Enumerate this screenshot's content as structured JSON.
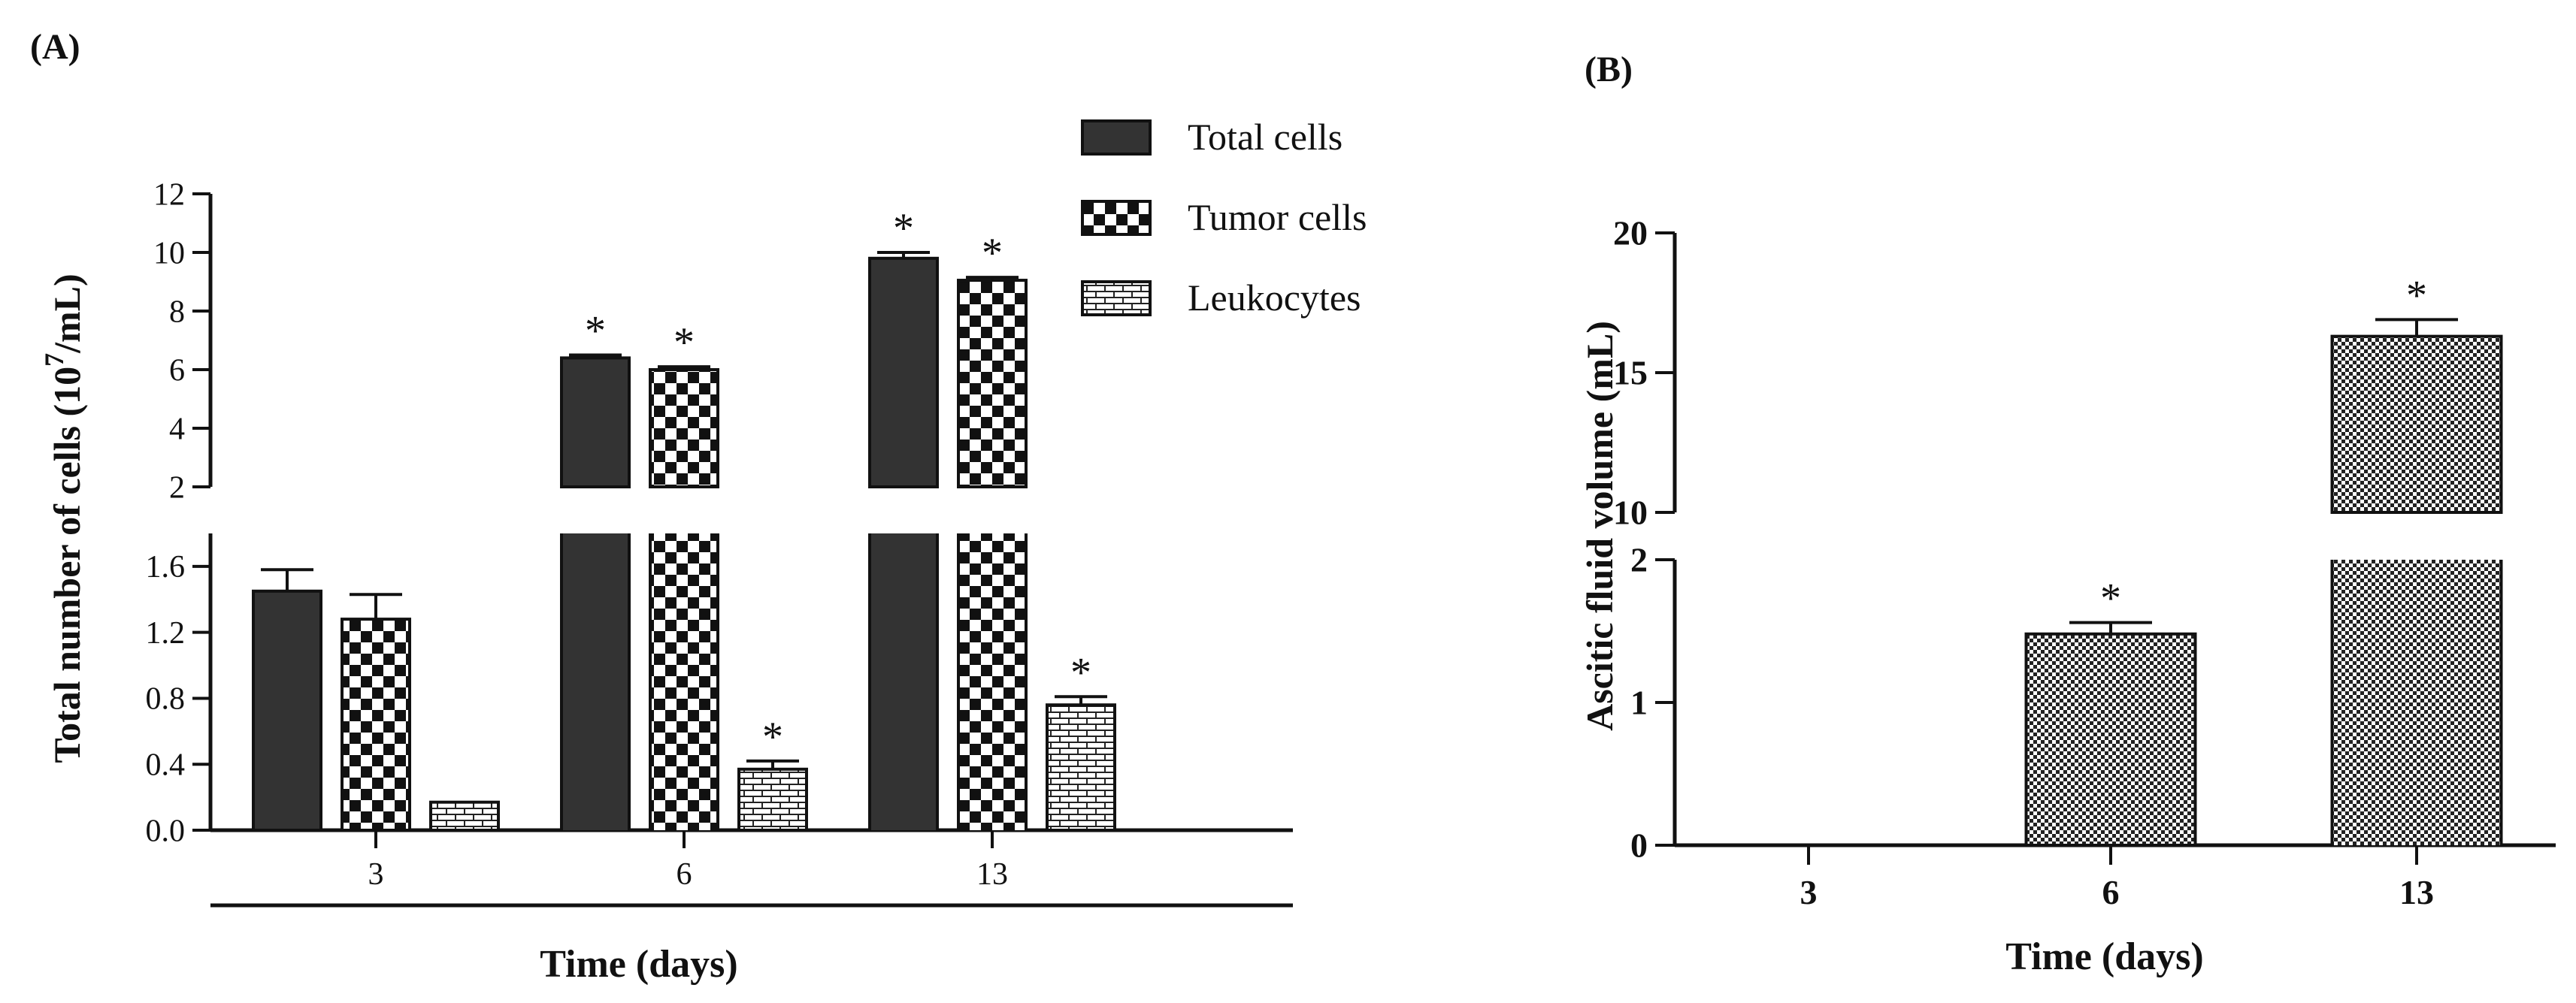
{
  "chart_data": [
    {
      "panel_label": "(A)",
      "type": "bar",
      "categories": [
        "3",
        "6",
        "13"
      ],
      "xlabel": "Time (days)",
      "ylabel": "Total number of cells (10",
      "ylabel_sup": "7",
      "ylabel_end": "/mL)",
      "axis_break": true,
      "ylim_lower": [
        0.0,
        1.8
      ],
      "ylim_upper": [
        2,
        12
      ],
      "yticks_lower": [
        "0.0",
        "0.4",
        "0.8",
        "1.2",
        "1.6"
      ],
      "yticks_upper": [
        "2",
        "4",
        "6",
        "8",
        "10",
        "12"
      ],
      "legend_position": "top-right",
      "series": [
        {
          "name": "Total cells",
          "pattern": "solid",
          "values": [
            1.45,
            6.4,
            9.8
          ],
          "errors": [
            0.13,
            0.1,
            0.2
          ],
          "significant": [
            false,
            true,
            true
          ]
        },
        {
          "name": "Tumor cells",
          "pattern": "checker",
          "values": [
            1.28,
            6.0,
            9.05
          ],
          "errors": [
            0.15,
            0.1,
            0.1
          ],
          "significant": [
            false,
            true,
            true
          ]
        },
        {
          "name": "Leukocytes",
          "pattern": "brick",
          "values": [
            0.17,
            0.37,
            0.76
          ],
          "errors": [
            0.0,
            0.05,
            0.05
          ],
          "significant": [
            false,
            true,
            true
          ]
        }
      ],
      "significance_marker": "*"
    },
    {
      "panel_label": "(B)",
      "type": "bar",
      "categories": [
        "3",
        "6",
        "13"
      ],
      "xlabel": "Time (days)",
      "ylabel": "Ascitic fluid volume (mL)",
      "axis_break": true,
      "ylim_lower": [
        0,
        2
      ],
      "ylim_upper": [
        10,
        20
      ],
      "yticks_lower": [
        "0",
        "1",
        "2"
      ],
      "yticks_upper": [
        "10",
        "15",
        "20"
      ],
      "series": [
        {
          "name": "",
          "pattern": "fine-checker",
          "values": [
            0,
            1.48,
            16.3
          ],
          "errors": [
            0,
            0.08,
            0.6
          ],
          "significant": [
            false,
            true,
            true
          ]
        }
      ],
      "significance_marker": "*"
    }
  ],
  "colors": {
    "dark_bar": "#333333",
    "axis": "#111111",
    "background": "#ffffff"
  }
}
